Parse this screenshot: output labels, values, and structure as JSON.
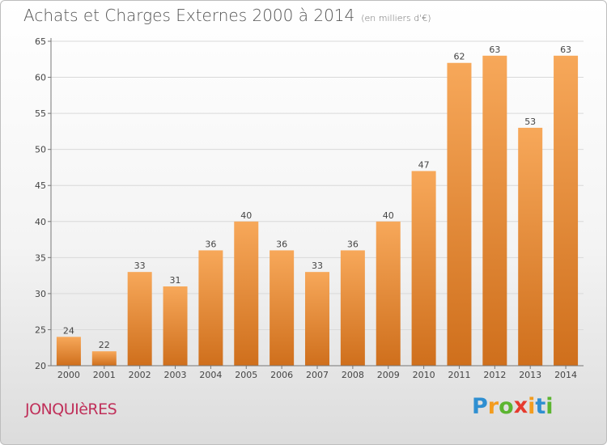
{
  "header": {
    "title": "Achats et Charges Externes 2000 à 2014",
    "subtitle": "(en milliers d'€)"
  },
  "footer": {
    "town": "JONQUIèRES",
    "logo": {
      "text": "Proxiti",
      "letters": [
        {
          "ch": "P",
          "color": "#2f8fd1"
        },
        {
          "ch": "r",
          "color": "#f39c1e"
        },
        {
          "ch": "o",
          "color": "#5cb531"
        },
        {
          "ch": "x",
          "color": "#e63a2e"
        },
        {
          "ch": "i",
          "color": "#f39c1e"
        },
        {
          "ch": "t",
          "color": "#2f8fd1"
        },
        {
          "ch": "i",
          "color": "#5cb531"
        }
      ]
    }
  },
  "colors": {
    "bar_top": "#f7a85a",
    "bar_bottom": "#cf6f1c",
    "grid": "#d9d9d9",
    "axis": "#777777",
    "label": "#444444"
  },
  "chart_data": {
    "type": "bar",
    "title": "Achats et Charges Externes 2000 à 2014",
    "subtitle": "(en milliers d'€)",
    "categories": [
      "2000",
      "2001",
      "2002",
      "2003",
      "2004",
      "2005",
      "2006",
      "2007",
      "2008",
      "2009",
      "2010",
      "2011",
      "2012",
      "2013",
      "2014"
    ],
    "values": [
      24,
      22,
      33,
      31,
      36,
      40,
      36,
      33,
      36,
      40,
      47,
      62,
      63,
      53,
      63
    ],
    "ylim": [
      20,
      65
    ],
    "yticks": [
      20,
      25,
      30,
      35,
      40,
      45,
      50,
      55,
      60,
      65
    ],
    "grid": true,
    "xlabel": "",
    "ylabel": ""
  }
}
